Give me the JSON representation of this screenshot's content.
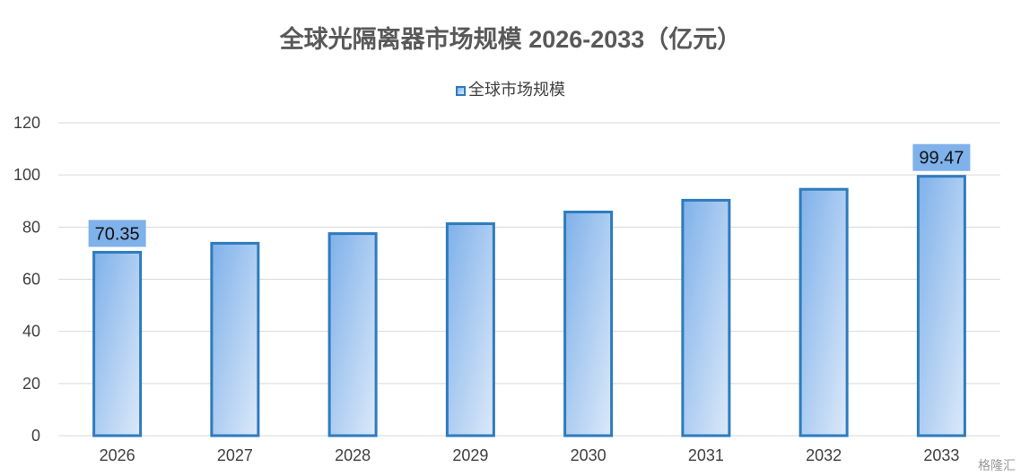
{
  "chart_data": {
    "type": "bar",
    "title": "全球光隔离器市场规模 2026-2033（亿元）",
    "categories": [
      "2026",
      "2027",
      "2028",
      "2029",
      "2030",
      "2031",
      "2032",
      "2033"
    ],
    "series": [
      {
        "name": "全球市场规模",
        "values": [
          70.35,
          73.8,
          77.5,
          81.3,
          85.8,
          90.3,
          94.5,
          99.47
        ]
      }
    ],
    "data_labels": {
      "2026": "70.35",
      "2033": "99.47"
    },
    "ylim": [
      0,
      120
    ],
    "yticks": [
      "0",
      "20",
      "40",
      "60",
      "80",
      "100",
      "120"
    ],
    "grid": true,
    "legend": "top-center",
    "colors": {
      "bar_border": "#2e7bbd",
      "bar_fill_start": "#7fb1ea",
      "bar_fill_end": "#dce9f9",
      "label_bg": "#7fb1ea",
      "grid": "#d9d9d9"
    }
  },
  "watermark": "格隆汇"
}
